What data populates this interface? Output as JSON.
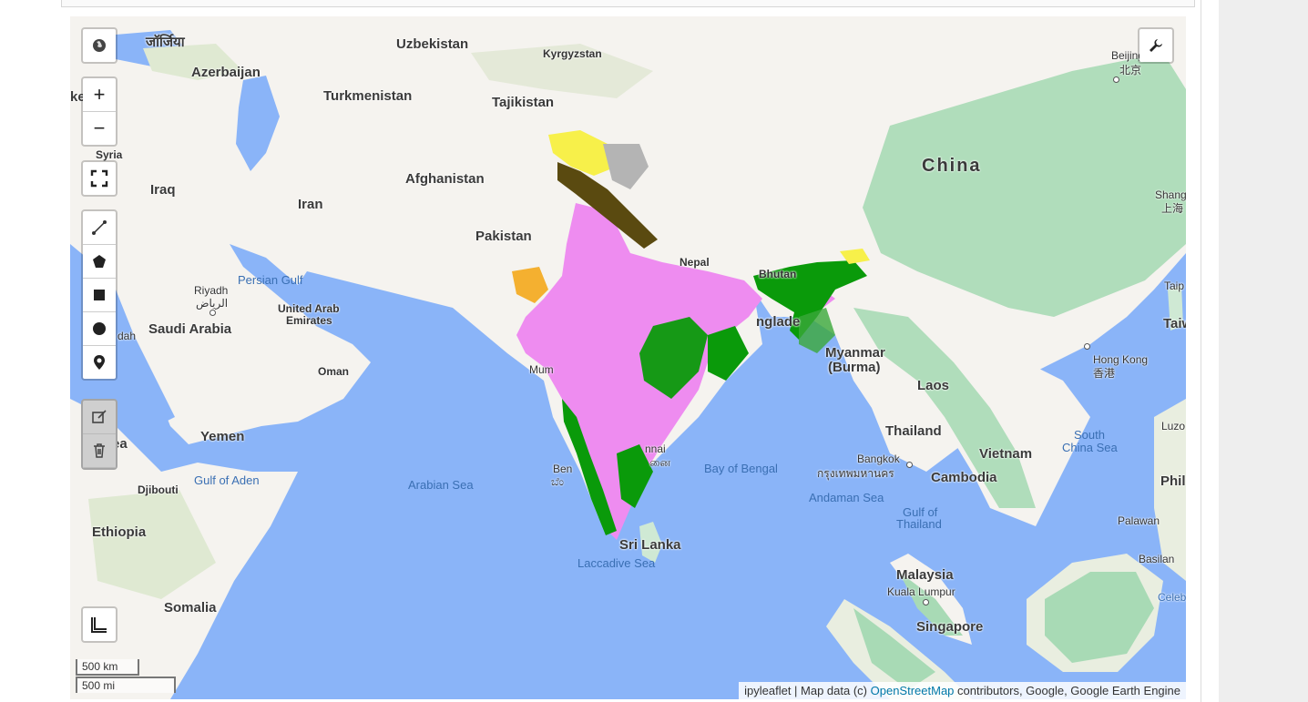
{
  "map": {
    "countries": {
      "georgia": "जॉर्जिया",
      "azerbaijan": "Azerbaijan",
      "uzbekistan": "Uzbekistan",
      "kyrgyzstan": "Kyrgyzstan",
      "turkmenistan": "Turkmenistan",
      "tajikistan": "Tajikistan",
      "syria": "Syria",
      "iraq": "Iraq",
      "afghanistan": "Afghanistan",
      "iran": "Iran",
      "pakistan": "Pakistan",
      "china": "China",
      "nepal": "Nepal",
      "bhutan": "Bhutan",
      "bangladesh": "nglade",
      "myanmar": "Myanmar",
      "myanmar_alt": "(Burma)",
      "laos": "Laos",
      "thailand": "Thailand",
      "vietnam": "Vietnam",
      "cambodia": "Cambodia",
      "saudi_arabia": "Saudi Arabia",
      "uae_1": "United Arab",
      "uae_2": "Emirates",
      "oman": "Oman",
      "yemen": "Yemen",
      "djibouti": "Djibouti",
      "ethiopia": "Ethiopia",
      "somalia": "Somalia",
      "sri_lanka": "Sri Lanka",
      "malaysia": "Malaysia",
      "singapore": "Singapore",
      "taiwan": "Taiwa",
      "phil": "Phil",
      "ea": "ea",
      "ke": "ke"
    },
    "cities": {
      "beijing": "Beijing",
      "beijing_local": "北京",
      "shanghai": "Shang",
      "shanghai_local": "上海",
      "riyadh": "Riyadh",
      "riyadh_local": "الرياض",
      "hong_kong": "Hong Kong",
      "hong_kong_local": "香港",
      "bangkok": "Bangkok",
      "bangkok_local": "กรุงเทพมหานคร",
      "kuala_lumpur": "Kuala Lumpur",
      "mumbai": "Mum",
      "chennai": "nnai",
      "chennai_local": "னை",
      "bengaluru": "Ben",
      "bengaluru_local": "ಬೆಂ",
      "jeddah": "dah",
      "palawan": "Palawan",
      "basilan": "Basilan",
      "luzon": "Luzo",
      "taipei": "Taip",
      "celebes": "Celeb"
    },
    "seas": {
      "persian_gulf": "Persian Gulf",
      "arabian_sea": "Arabian Sea",
      "bay_of_bengal": "Bay of Bengal",
      "andaman_sea": "Andaman Sea",
      "laccadive_sea": "Laccadive Sea",
      "gulf_of_aden": "Gulf of Aden",
      "gulf_of_thailand_1": "Gulf of",
      "gulf_of_thailand_2": "Thailand",
      "south_china_sea_1": "South",
      "south_china_sea_2": "China Sea"
    },
    "colors": {
      "water": "#8ab4f8",
      "land": "#f5f3ef",
      "vegetation": "#a8dab5",
      "cropland": "#ee8cf0",
      "forest": "#0a9a0a",
      "snow": "#f7f04a",
      "bare": "#b4b4b4",
      "shrub": "#f4b030"
    }
  },
  "controls": {
    "layers_icon": "globe-icon",
    "zoom_in": "+",
    "zoom_out": "−",
    "fullscreen_icon": "fullscreen-icon",
    "draw_tools": [
      "polyline-icon",
      "polygon-icon",
      "rectangle-icon",
      "circle-icon",
      "marker-icon"
    ],
    "edit_tools": [
      "edit-icon",
      "trash-icon"
    ],
    "toolbar_icon": "wrench-icon",
    "measure_icon": "measure-icon"
  },
  "scale": {
    "metric": "500 km",
    "imperial": "500 mi"
  },
  "attribution": {
    "prefix": "ipyleaflet | Map data (c) ",
    "link": "OpenStreetMap",
    "suffix": " contributors, Google, Google Earth Engine"
  }
}
